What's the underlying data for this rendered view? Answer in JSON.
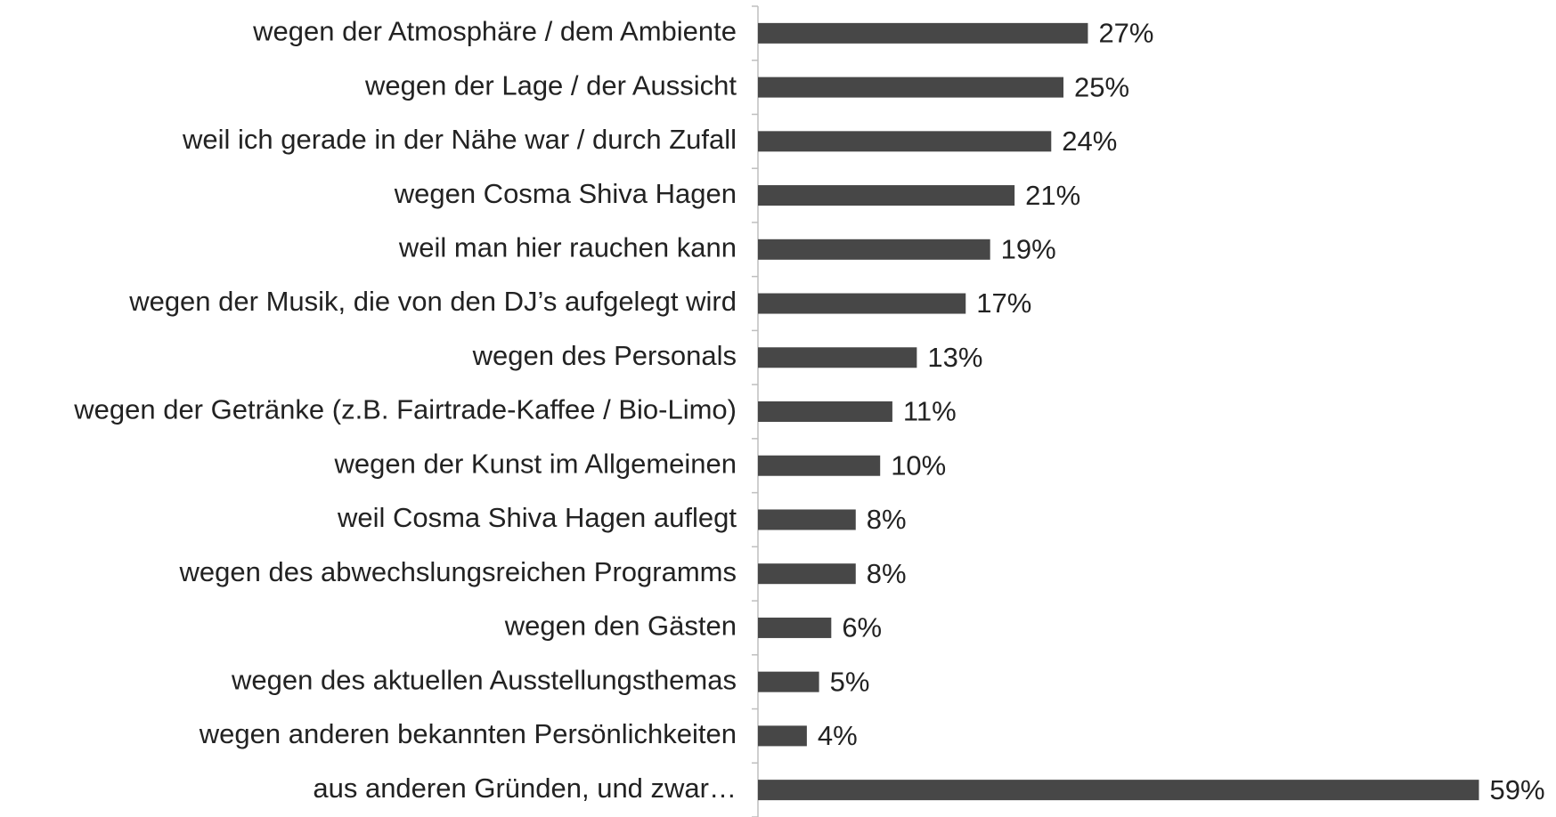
{
  "chart_data": {
    "type": "bar",
    "orientation": "horizontal",
    "color": "#474747",
    "categories": [
      "wegen der Atmosphäre / dem Ambiente",
      "wegen der Lage / der Aussicht",
      "weil ich gerade in der Nähe war / durch Zufall",
      "wegen Cosma Shiva Hagen",
      "weil man hier rauchen kann",
      "wegen der Musik, die von den DJ’s aufgelegt wird",
      "wegen des Personals",
      "wegen der Getränke (z.B. Fairtrade-Kaffee / Bio-Limo)",
      "wegen der Kunst im Allgemeinen",
      "weil Cosma Shiva Hagen auflegt",
      "wegen des abwechslungsreichen Programms",
      "wegen den Gästen",
      "wegen des aktuellen Ausstellungsthemas",
      "wegen anderen bekannten Persönlichkeiten",
      "aus anderen Gründen, und zwar…"
    ],
    "values": [
      27,
      25,
      24,
      21,
      19,
      17,
      13,
      11,
      10,
      8,
      8,
      6,
      5,
      4,
      59
    ],
    "value_labels": [
      "27%",
      "25%",
      "24%",
      "21%",
      "19%",
      "17%",
      "13%",
      "11%",
      "10%",
      "8%",
      "8%",
      "6%",
      "5%",
      "4%",
      "59%"
    ]
  }
}
